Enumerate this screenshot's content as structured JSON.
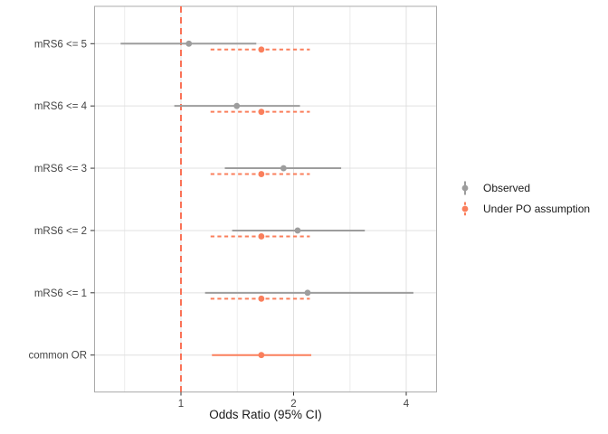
{
  "chart_data": {
    "type": "scatter",
    "subtype": "forest-pointrange",
    "title": "",
    "xlabel": "Odds Ratio (95% CI)",
    "ylabel": "",
    "x_scale": "log2",
    "x_ticks": [
      1,
      2,
      4
    ],
    "x_minor_ticks": [
      0.707,
      1.414,
      2.83
    ],
    "x_range": [
      0.59,
      4.83
    ],
    "grid": true,
    "reference_line": {
      "x": 1,
      "style": "dashed"
    },
    "categories": [
      "mRS6 <= 5",
      "mRS6 <= 4",
      "mRS6 <= 3",
      "mRS6 <= 2",
      "mRS6 <= 1",
      "common OR"
    ],
    "series": [
      {
        "name": "Observed",
        "style": "solid",
        "points": [
          {
            "category": "mRS6 <= 5",
            "or": 1.05,
            "ci_low": 0.69,
            "ci_high": 1.59
          },
          {
            "category": "mRS6 <= 4",
            "or": 1.41,
            "ci_low": 0.96,
            "ci_high": 2.08
          },
          {
            "category": "mRS6 <= 3",
            "or": 1.88,
            "ci_low": 1.31,
            "ci_high": 2.68
          },
          {
            "category": "mRS6 <= 2",
            "or": 2.05,
            "ci_low": 1.37,
            "ci_high": 3.1
          },
          {
            "category": "mRS6 <= 1",
            "or": 2.18,
            "ci_low": 1.16,
            "ci_high": 4.18
          }
        ]
      },
      {
        "name": "Under PO assumption",
        "style": "dashed",
        "points": [
          {
            "category": "mRS6 <= 5",
            "or": 1.64,
            "ci_low": 1.2,
            "ci_high": 2.21
          },
          {
            "category": "mRS6 <= 4",
            "or": 1.64,
            "ci_low": 1.2,
            "ci_high": 2.21
          },
          {
            "category": "mRS6 <= 3",
            "or": 1.64,
            "ci_low": 1.2,
            "ci_high": 2.21
          },
          {
            "category": "mRS6 <= 2",
            "or": 1.64,
            "ci_low": 1.2,
            "ci_high": 2.21
          },
          {
            "category": "mRS6 <= 1",
            "or": 1.64,
            "ci_low": 1.2,
            "ci_high": 2.21
          },
          {
            "category": "common OR",
            "or": 1.64,
            "ci_low": 1.21,
            "ci_high": 2.23,
            "line": "solid"
          }
        ]
      }
    ],
    "legend_position": "right"
  },
  "colors": {
    "observed": "#9d9d9d",
    "po": "#fa7f5c",
    "reference_line": "#fa7257",
    "grid_major": "#e0e0e0",
    "grid_minor": "#ececec",
    "panel_border": "#ababab",
    "tick": "#333333",
    "axis_text": "#454545"
  },
  "axis": {
    "x_title": "Odds Ratio (95% CI)"
  },
  "legend": {
    "items": [
      {
        "label": "Observed"
      },
      {
        "label": "Under PO assumption"
      }
    ]
  }
}
